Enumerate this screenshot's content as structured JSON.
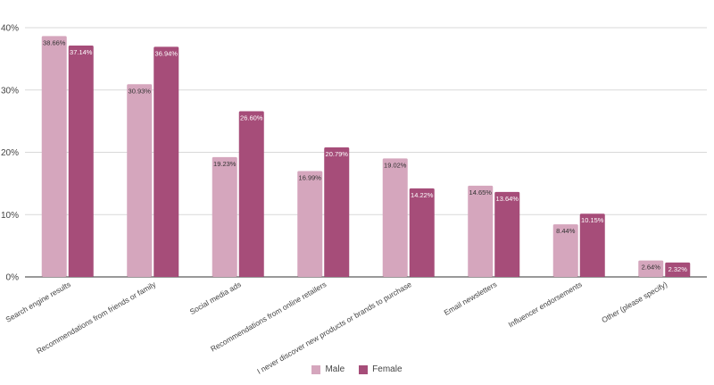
{
  "chart_data": {
    "type": "bar",
    "title": "",
    "xlabel": "",
    "ylabel": "",
    "ylim": [
      0,
      40
    ],
    "yticks": [
      "0%",
      "10%",
      "20%",
      "30%",
      "40%"
    ],
    "ytick_values": [
      0,
      10,
      20,
      30,
      40
    ],
    "grid": true,
    "legend_position": "bottom",
    "categories": [
      "Search engine results",
      "Recommendations from friends or family",
      "Social media ads",
      "Recommendations from online retailers",
      "I never discover new products or brands to purchase",
      "Email newsletters",
      "Influencer endorsements",
      "Other (please specify)"
    ],
    "series": [
      {
        "name": "Male",
        "color": "#d5a6bd",
        "values": [
          38.66,
          30.93,
          19.23,
          16.99,
          19.02,
          14.65,
          8.44,
          2.64
        ],
        "labels": [
          "38.66%",
          "30.93%",
          "19.23%",
          "16.99%",
          "19.02%",
          "14.65%",
          "8.44%",
          "2.64%"
        ]
      },
      {
        "name": "Female",
        "color": "#a64d79",
        "values": [
          37.14,
          36.94,
          26.6,
          20.79,
          14.22,
          13.64,
          10.15,
          2.32
        ],
        "labels": [
          "37.14%",
          "36.94%",
          "26.60%",
          "20.79%",
          "14.22%",
          "13.64%",
          "10.15%",
          "2.32%"
        ]
      }
    ]
  }
}
